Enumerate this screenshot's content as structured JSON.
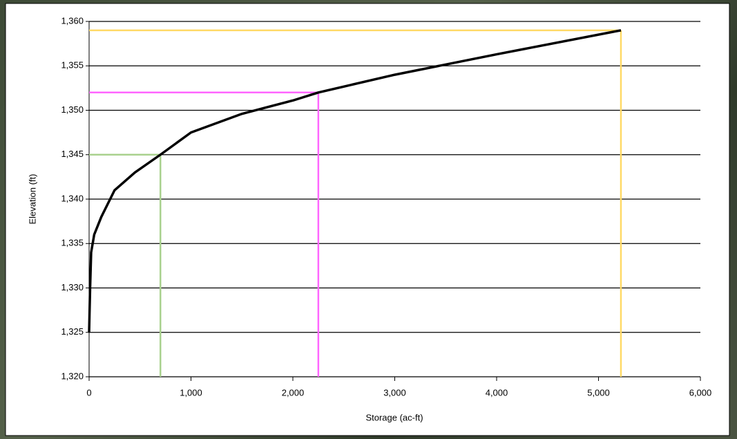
{
  "chart_data": {
    "type": "line",
    "x_label": "Storage (ac-ft)",
    "y_label": "Elevation (ft)",
    "x": [
      0,
      10,
      20,
      50,
      120,
      250,
      450,
      700,
      1000,
      1500,
      2000,
      2250,
      3000,
      4000,
      5220
    ],
    "series": [
      {
        "color": "#000000",
        "values": [
          1325,
          1330,
          1334,
          1336,
          1338,
          1341,
          1343,
          1345,
          1347.5,
          1349.6,
          1351.1,
          1352,
          1354,
          1356.3,
          1359
        ]
      }
    ],
    "reference_lines": [
      {
        "color": "#a9d18e",
        "x": 700,
        "y": 1345
      },
      {
        "color": "#ff66ff",
        "x": 2250,
        "y": 1352
      },
      {
        "color": "#ffd966",
        "x": 5220,
        "y": 1359
      }
    ],
    "xlim": [
      0,
      6000
    ],
    "ylim": [
      1320,
      1360
    ],
    "xticks": [
      0,
      {
        "value": 1000,
        "label": "1,000"
      },
      {
        "value": 2000,
        "label": "2,000"
      },
      {
        "value": 3000,
        "label": "3,000"
      },
      {
        "value": 4000,
        "label": "4,000"
      },
      {
        "value": 5000,
        "label": "5,000"
      },
      {
        "value": 6000,
        "label": "6,000"
      }
    ],
    "yticks": [
      {
        "value": 1320,
        "label": "1,320"
      },
      {
        "value": 1325,
        "label": "1,325"
      },
      {
        "value": 1330,
        "label": "1,330"
      },
      {
        "value": 1335,
        "label": "1,335"
      },
      {
        "value": 1340,
        "label": "1,340"
      },
      {
        "value": 1345,
        "label": "1,345"
      },
      {
        "value": 1350,
        "label": "1,350"
      },
      {
        "value": 1355,
        "label": "1,355"
      },
      {
        "value": 1360,
        "label": "1,360"
      }
    ],
    "grid": true
  }
}
